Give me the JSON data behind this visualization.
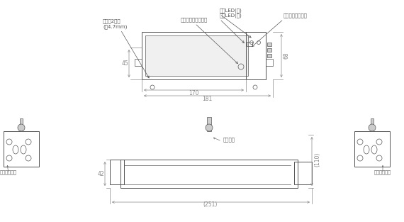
{
  "bg_color": "#ffffff",
  "line_color": "#555555",
  "dim_color": "#888888",
  "text_color": "#555555",
  "orange_color": "#c87020",
  "fig_width": 5.7,
  "fig_height": 3.13,
  "dpi": 100,
  "annotations": {
    "dengen_led": "電源LED(緑)",
    "jushin_led": "受信LED(赤)",
    "mode_switch": "モード切替スイッチ",
    "reset_switch": "リセットスイッチ",
    "toritsuke": "取付穴2箇所",
    "toritsuke2": "(径4.7mm)",
    "antenna": "アンテナ",
    "dengen_terminal": "電源側端子台",
    "fuka_terminal": "負荷側端子台",
    "dim_170": "170",
    "dim_181": "181",
    "dim_45": "45",
    "dim_68": "68",
    "dim_42": "42",
    "dim_110": "(110)",
    "dim_251": "(251)"
  }
}
